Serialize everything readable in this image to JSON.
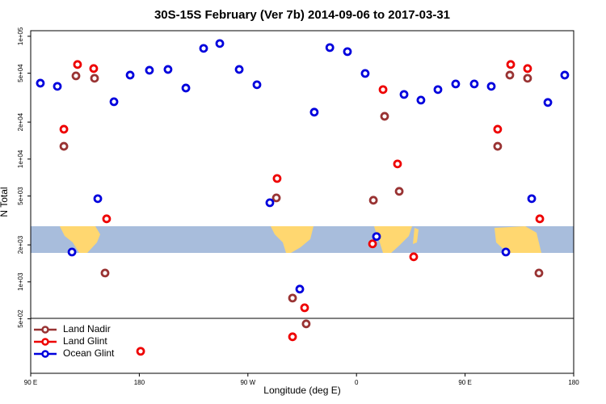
{
  "chart_data": {
    "type": "scatter",
    "title": "30S-15S February (Ver 7b)   2014-09-06 to 2017-03-31",
    "xlabel": "Longitude (deg E)",
    "ylabel": "N Total",
    "log_y": true,
    "xlim": [
      90,
      540
    ],
    "ylim": [
      180,
      111000
    ],
    "xticks": [
      {
        "value": 90,
        "label": "90 E"
      },
      180,
      {
        "value": 270,
        "label": "90 W"
      },
      {
        "value": 360,
        "label": "0"
      },
      {
        "value": 450,
        "label": "90 E"
      },
      {
        "value": 540,
        "label": "180"
      }
    ],
    "yticks": [
      {
        "value": 100000,
        "label": "1e+05"
      },
      {
        "value": 50000,
        "label": "5e+04"
      },
      {
        "value": 20000,
        "label": "2e+04"
      },
      {
        "value": 10000,
        "label": "1e+04"
      },
      {
        "value": 5000,
        "label": "5e+03"
      },
      {
        "value": 2000,
        "label": "2e+03"
      },
      {
        "value": 1000,
        "label": "1e+03"
      },
      {
        "value": 500,
        "label": "5e+02"
      }
    ],
    "legend": "lower left",
    "series": [
      {
        "name": "Land Nadir",
        "color": "#993333",
        "x": [
          127.5,
          142.9,
          117.5,
          151.6,
          293.6,
          307,
          318.3,
          374,
          383.3,
          395.4,
          477,
          487.1,
          501.8,
          511.2
        ],
        "values": [
          47600,
          45500,
          12700,
          1180,
          4830,
          738,
          455,
          4620,
          22300,
          5460,
          12700,
          48300,
          45500,
          1180
        ]
      },
      {
        "name": "Land Glint",
        "color": "#ee0000",
        "x": [
          117.5,
          128.8,
          142.2,
          152.9,
          181.1,
          294.2,
          307,
          317,
          373.3,
          382,
          394,
          407.4,
          477,
          487.8,
          501.8,
          511.9
        ],
        "values": [
          17500,
          58900,
          54600,
          3260,
          272,
          6950,
          357,
          615,
          2040,
          36800,
          9130,
          1600,
          17500,
          58900,
          54600,
          3260
        ]
      },
      {
        "name": "Ocean Glint",
        "color": "#0000dd",
        "x": [
          98,
          112.1,
          124.2,
          145.6,
          159,
          172.4,
          188.4,
          203.8,
          218.6,
          233.3,
          246.7,
          262.8,
          277.5,
          288.2,
          313,
          325,
          337.9,
          352.5,
          367.2,
          376.6,
          399.4,
          413.4,
          427.5,
          442.2,
          457.6,
          471.7,
          483.8,
          505.2,
          518.6,
          532.6
        ],
        "values": [
          41500,
          39100,
          1750,
          4760,
          29300,
          48300,
          52900,
          53700,
          37900,
          79700,
          87300,
          53700,
          40300,
          4410,
          873,
          24100,
          80900,
          75000,
          49800,
          2340,
          33600,
          30200,
          36800,
          40900,
          40900,
          39100,
          1750,
          4760,
          28900,
          48300
        ]
      }
    ]
  }
}
